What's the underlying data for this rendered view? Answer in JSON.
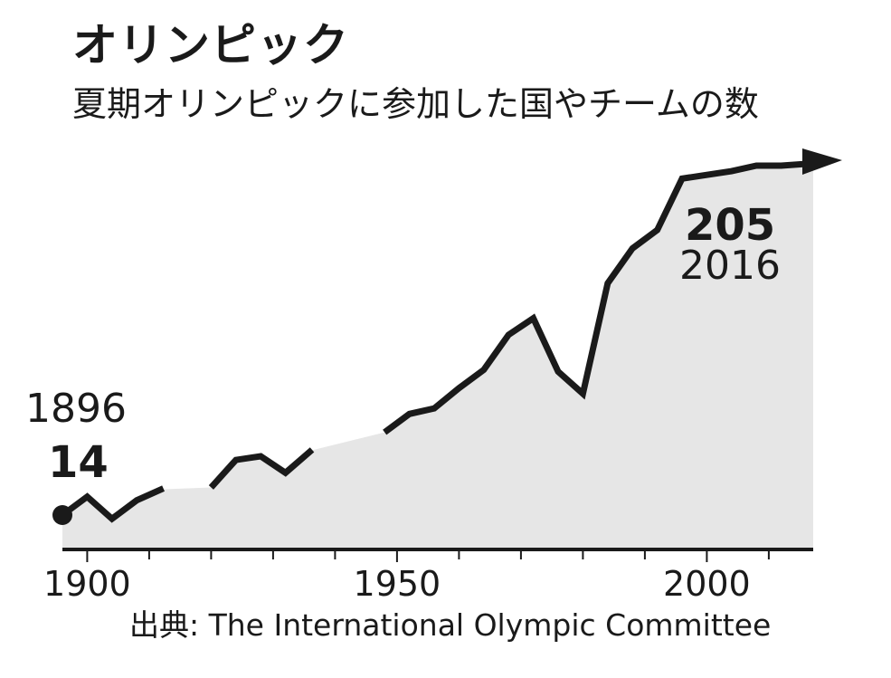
{
  "title": "オリンピック",
  "subtitle": "夏期オリンピックに参加した国やチームの数",
  "source": "出典: The International Olympic Committee",
  "colors": {
    "line": "#1a1a1a",
    "area": "#e6e6e6",
    "axis": "#1a1a1a"
  },
  "chart_data": {
    "type": "area",
    "xlim": [
      1893,
      2020
    ],
    "ylim": [
      0,
      215
    ],
    "x_ticks": [
      1900,
      1950,
      2000
    ],
    "x_tick_labels": [
      "1900",
      "1950",
      "2000"
    ],
    "series": [
      {
        "years": [
          1896,
          1900,
          1904,
          1908,
          1912,
          1920,
          1924,
          1928,
          1932,
          1936,
          1948,
          1952,
          1956,
          1960,
          1964,
          1968,
          1972,
          1976,
          1980,
          1984,
          1988,
          1992,
          1996,
          2000,
          2004,
          2008,
          2012,
          2016
        ],
        "values": [
          14,
          24,
          12,
          22,
          28,
          29,
          44,
          46,
          37,
          49,
          59,
          69,
          72,
          83,
          93,
          112,
          121,
          92,
          80,
          140,
          159,
          169,
          197,
          199,
          201,
          204,
          204,
          205
        ],
        "gaps_before": [
          1920,
          1948
        ]
      }
    ],
    "annotations": [
      {
        "value": "14",
        "label": "1896",
        "at_year": 1896
      },
      {
        "value": "205",
        "label": "2016",
        "at_year": 2016
      }
    ]
  }
}
